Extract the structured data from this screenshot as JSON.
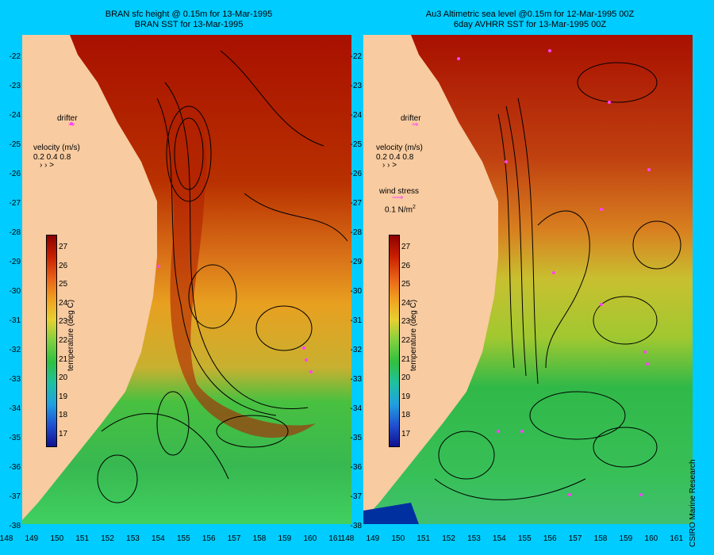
{
  "panels": [
    {
      "title": "BRAN sfc height @ 0.15m for 13-Mar-1995\nBRAN SST for 13-Mar-1995",
      "drifter_label": "drifter",
      "velocity_label": "velocity (m/s)",
      "velocity_scale": "0.2 0.4 0.8"
    },
    {
      "title": "Au3 Altimetric sea level  @0.15m  for 12-Mar-1995 00Z\n6day AVHRR SST for 13-Mar-1995 00Z",
      "drifter_label": "drifter",
      "velocity_label": "velocity (m/s)",
      "velocity_scale": "0.2 0.4 0.8",
      "wind_label": "wind stress",
      "wind_value": "0.1 N/m",
      "wind_exp": "2"
    }
  ],
  "colorbar": {
    "label": "temperature (deg C)",
    "ticks": [
      "27",
      "26",
      "25",
      "24",
      "23",
      "22",
      "21",
      "20",
      "19",
      "18",
      "17"
    ]
  },
  "latitudes": [
    "-22",
    "-23",
    "-24",
    "-25",
    "-26",
    "-27",
    "-28",
    "-29",
    "-30",
    "-31",
    "-32",
    "-33",
    "-34",
    "-35",
    "-36",
    "-37",
    "-38"
  ],
  "longitudes": [
    "148",
    "149",
    "150",
    "151",
    "152",
    "153",
    "154",
    "155",
    "156",
    "157",
    "158",
    "159",
    "160",
    "161"
  ],
  "credit": "CSIRO Marine Research",
  "colors": {
    "land": "#f8cba0",
    "background": "#00ccff",
    "warm": "#b01800",
    "mid": "#e89020",
    "cool": "#40c040",
    "drifter": "#ff40ff"
  }
}
